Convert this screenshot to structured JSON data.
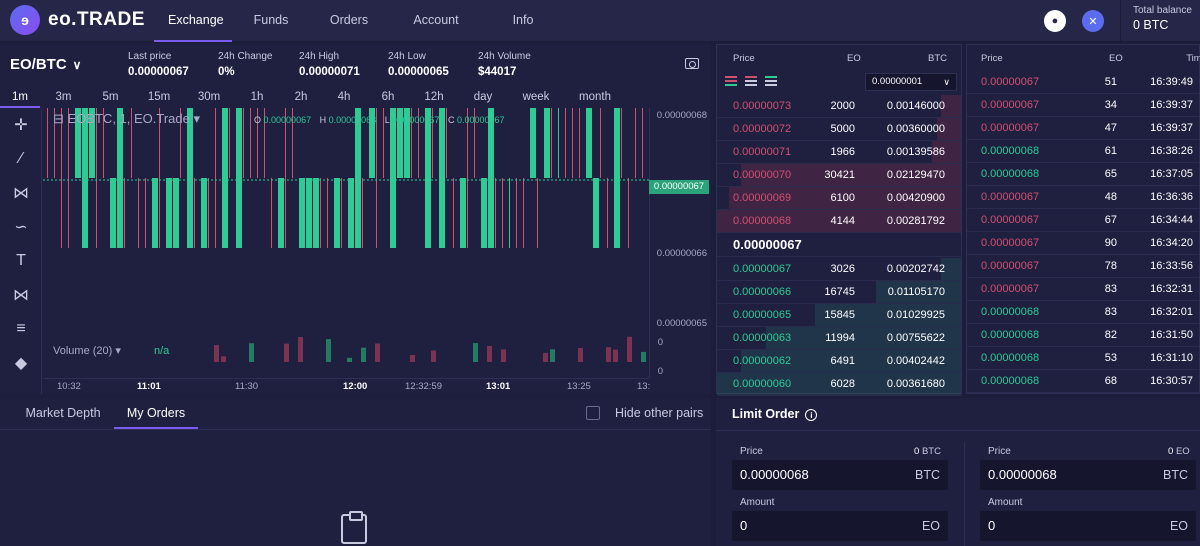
{
  "brand": {
    "logo_text": "eo.TRADE"
  },
  "nav": [
    "Exchange",
    "Funds",
    "Orders",
    "Account",
    "Info"
  ],
  "balance": {
    "label": "Total balance",
    "value": "0 BTC"
  },
  "market": {
    "pair": "EO/BTC",
    "stats": [
      {
        "label": "Last price",
        "value": "0.00000067"
      },
      {
        "label": "24h Change",
        "value": "0%"
      },
      {
        "label": "24h High",
        "value": "0.00000071"
      },
      {
        "label": "24h Low",
        "value": "0.00000065"
      },
      {
        "label": "24h Volume",
        "value": "$44017"
      }
    ]
  },
  "timeframes": [
    "1m",
    "3m",
    "5m",
    "15m",
    "30m",
    "1h",
    "2h",
    "4h",
    "6h",
    "12h",
    "day",
    "week",
    "month"
  ],
  "chart": {
    "legend": "EOBTC, 1, EO.Trade",
    "ohlc": [
      {
        "key": "O",
        "value": "0.00000067"
      },
      {
        "key": "H",
        "value": "0.00000068"
      },
      {
        "key": "L",
        "value": "0.00000067"
      },
      {
        "key": "C",
        "value": "0.00000067"
      }
    ],
    "price_labels": [
      "0.00000068",
      "0.00000066",
      "0.00000065"
    ],
    "current_price": "0.00000067",
    "volume_legend": "Volume (20)",
    "volume_value": "n/a",
    "volume_scale": [
      "0",
      "0"
    ],
    "time_labels": [
      "10:32",
      "11:01",
      "11:30",
      "12:00",
      "12:32:59",
      "13:01",
      "13:25",
      "13:"
    ]
  },
  "orderbook": {
    "headers": {
      "price": "Price",
      "qty": "EO",
      "total": "BTC"
    },
    "precision": "0.00000001",
    "asks": [
      {
        "price": "0.00000073",
        "qty": "2000",
        "total": "0.00146000",
        "depth": 0.08
      },
      {
        "price": "0.00000072",
        "qty": "5000",
        "total": "0.00360000",
        "depth": 0.1
      },
      {
        "price": "0.00000071",
        "qty": "1966",
        "total": "0.00139586",
        "depth": 0.12
      },
      {
        "price": "0.00000070",
        "qty": "30421",
        "total": "0.02129470",
        "depth": 0.9
      },
      {
        "price": "0.00000069",
        "qty": "6100",
        "total": "0.00420900",
        "depth": 0.95
      },
      {
        "price": "0.00000068",
        "qty": "4144",
        "total": "0.00281792",
        "depth": 1.0
      }
    ],
    "mid_price": "0.00000067",
    "bids": [
      {
        "price": "0.00000067",
        "qty": "3026",
        "total": "0.00202742",
        "depth": 0.08
      },
      {
        "price": "0.00000066",
        "qty": "16745",
        "total": "0.01105170",
        "depth": 0.35
      },
      {
        "price": "0.00000065",
        "qty": "15845",
        "total": "0.01029925",
        "depth": 0.6
      },
      {
        "price": "0.00000063",
        "qty": "11994",
        "total": "0.00755622",
        "depth": 0.8
      },
      {
        "price": "0.00000062",
        "qty": "6491",
        "total": "0.00402442",
        "depth": 0.9
      },
      {
        "price": "0.00000060",
        "qty": "6028",
        "total": "0.00361680",
        "depth": 1.0
      }
    ]
  },
  "trades": {
    "headers": {
      "price": "Price",
      "qty": "EO",
      "time": "Time"
    },
    "rows": [
      {
        "price": "0.00000067",
        "qty": "51",
        "time": "16:39:49",
        "side": "sell"
      },
      {
        "price": "0.00000067",
        "qty": "34",
        "time": "16:39:37",
        "side": "sell"
      },
      {
        "price": "0.00000067",
        "qty": "47",
        "time": "16:39:37",
        "side": "sell"
      },
      {
        "price": "0.00000068",
        "qty": "61",
        "time": "16:38:26",
        "side": "buy"
      },
      {
        "price": "0.00000068",
        "qty": "65",
        "time": "16:37:05",
        "side": "buy"
      },
      {
        "price": "0.00000067",
        "qty": "48",
        "time": "16:36:36",
        "side": "sell"
      },
      {
        "price": "0.00000067",
        "qty": "67",
        "time": "16:34:44",
        "side": "sell"
      },
      {
        "price": "0.00000067",
        "qty": "90",
        "time": "16:34:20",
        "side": "sell"
      },
      {
        "price": "0.00000067",
        "qty": "78",
        "time": "16:33:56",
        "side": "sell"
      },
      {
        "price": "0.00000067",
        "qty": "83",
        "time": "16:32:31",
        "side": "sell"
      },
      {
        "price": "0.00000068",
        "qty": "83",
        "time": "16:32:01",
        "side": "buy"
      },
      {
        "price": "0.00000068",
        "qty": "82",
        "time": "16:31:50",
        "side": "buy"
      },
      {
        "price": "0.00000068",
        "qty": "53",
        "time": "16:31:10",
        "side": "buy"
      },
      {
        "price": "0.00000068",
        "qty": "68",
        "time": "16:30:57",
        "side": "buy"
      }
    ]
  },
  "bottom_tabs": [
    "Market Depth",
    "My Orders"
  ],
  "hide_other_pairs": "Hide other pairs",
  "limit_order": {
    "title": "Limit Order",
    "buy": {
      "price_label": "Price",
      "balance": "0",
      "balance_unit": "BTC",
      "price": "0.00000068",
      "price_unit": "BTC",
      "amount_label": "Amount",
      "amount": "0",
      "amount_unit": "EO"
    },
    "sell": {
      "price_label": "Price",
      "balance": "0",
      "balance_unit": "EO",
      "price": "0.00000068",
      "price_unit": "BTC",
      "amount_label": "Amount",
      "amount": "0",
      "amount_unit": "EO"
    }
  },
  "colors": {
    "bg": "#1c1d3a",
    "panel": "#1f2040",
    "up": "#2ecb95",
    "down": "#d0506f",
    "accent": "#7a5cf0"
  }
}
